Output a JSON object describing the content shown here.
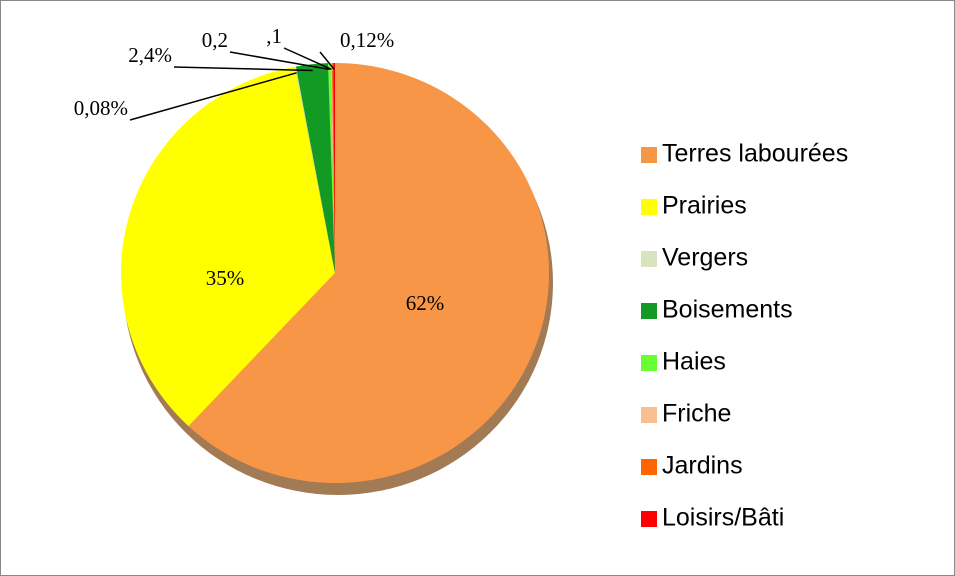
{
  "chart_data": {
    "type": "pie",
    "categories": [
      "Terres labourées",
      "Prairies",
      "Vergers",
      "Boisements",
      "Haies",
      "Friche",
      "Jardins",
      "Loisirs/Bâti"
    ],
    "values": [
      62,
      35,
      0.08,
      2.4,
      0.2,
      0.1,
      0.1,
      0.12
    ],
    "value_labels": [
      "62%",
      "35%",
      "0,08%",
      "2,4%",
      "0,2",
      ",1",
      null,
      "0,12%"
    ],
    "colors": [
      "#f79646",
      "#ffff00",
      "#d7e4bd",
      "#139a24",
      "#66ff33",
      "#fabf8f",
      "#ff6600",
      "#ff0000"
    ],
    "legend": "right"
  }
}
